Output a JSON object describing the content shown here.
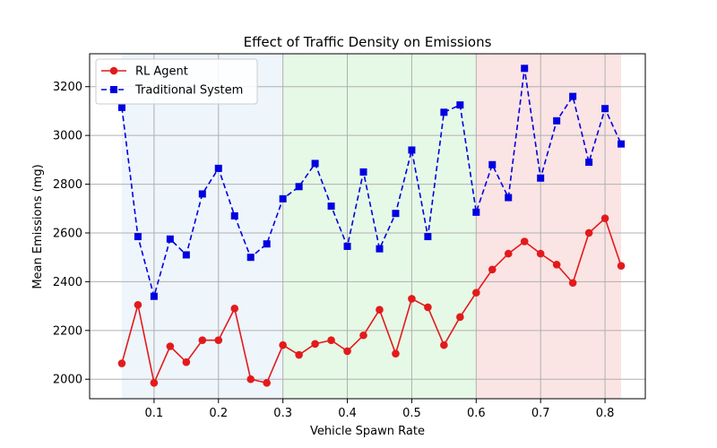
{
  "chart_data": {
    "type": "line",
    "title": "Effect of Traffic Density on Emissions",
    "xlabel": "Vehicle Spawn Rate",
    "ylabel": "Mean Emissions (mg)",
    "xlim": [
      0.0,
      0.8625
    ],
    "ylim": [
      1920,
      3335
    ],
    "xticks": [
      0.1,
      0.2,
      0.3,
      0.4,
      0.5,
      0.6,
      0.7,
      0.8
    ],
    "xtick_labels": [
      "0.1",
      "0.2",
      "0.3",
      "0.4",
      "0.5",
      "0.6",
      "0.7",
      "0.8"
    ],
    "yticks": [
      2000,
      2200,
      2400,
      2600,
      2800,
      3000,
      3200
    ],
    "ytick_labels": [
      "2000",
      "2200",
      "2400",
      "2600",
      "2800",
      "3000",
      "3200"
    ],
    "grid": true,
    "legend_position": "top-left",
    "regions": [
      {
        "x_start": 0.05,
        "x_end": 0.3,
        "color": "#eef5fb"
      },
      {
        "x_start": 0.3,
        "x_end": 0.6,
        "color": "#e6f9e6"
      },
      {
        "x_start": 0.6,
        "x_end": 0.825,
        "color": "#fbe4e4"
      }
    ],
    "x": [
      0.05,
      0.075,
      0.1,
      0.125,
      0.15,
      0.175,
      0.2,
      0.225,
      0.25,
      0.275,
      0.3,
      0.325,
      0.35,
      0.375,
      0.4,
      0.425,
      0.45,
      0.475,
      0.5,
      0.525,
      0.55,
      0.575,
      0.6,
      0.625,
      0.65,
      0.675,
      0.7,
      0.725,
      0.75,
      0.775,
      0.8,
      0.825
    ],
    "series": [
      {
        "name": "RL Agent",
        "color": "#e31a1c",
        "line_style": "solid",
        "marker": "circle",
        "values": [
          2065,
          2305,
          1985,
          2135,
          2070,
          2160,
          2160,
          2290,
          2000,
          1985,
          2140,
          2100,
          2145,
          2160,
          2115,
          2180,
          2285,
          2105,
          2330,
          2295,
          2140,
          2255,
          2355,
          2450,
          2515,
          2565,
          2515,
          2470,
          2395,
          2600,
          2660,
          2465
        ]
      },
      {
        "name": "Traditional System",
        "color": "#0000e0",
        "line_style": "dashed",
        "marker": "square",
        "values": [
          3115,
          2585,
          2340,
          2575,
          2510,
          2760,
          2865,
          2670,
          2500,
          2555,
          2740,
          2790,
          2885,
          2710,
          2545,
          2850,
          2535,
          2680,
          2940,
          2585,
          3095,
          3125,
          2685,
          2880,
          2745,
          3275,
          2825,
          3060,
          3160,
          2890,
          3110,
          2965
        ]
      }
    ]
  }
}
